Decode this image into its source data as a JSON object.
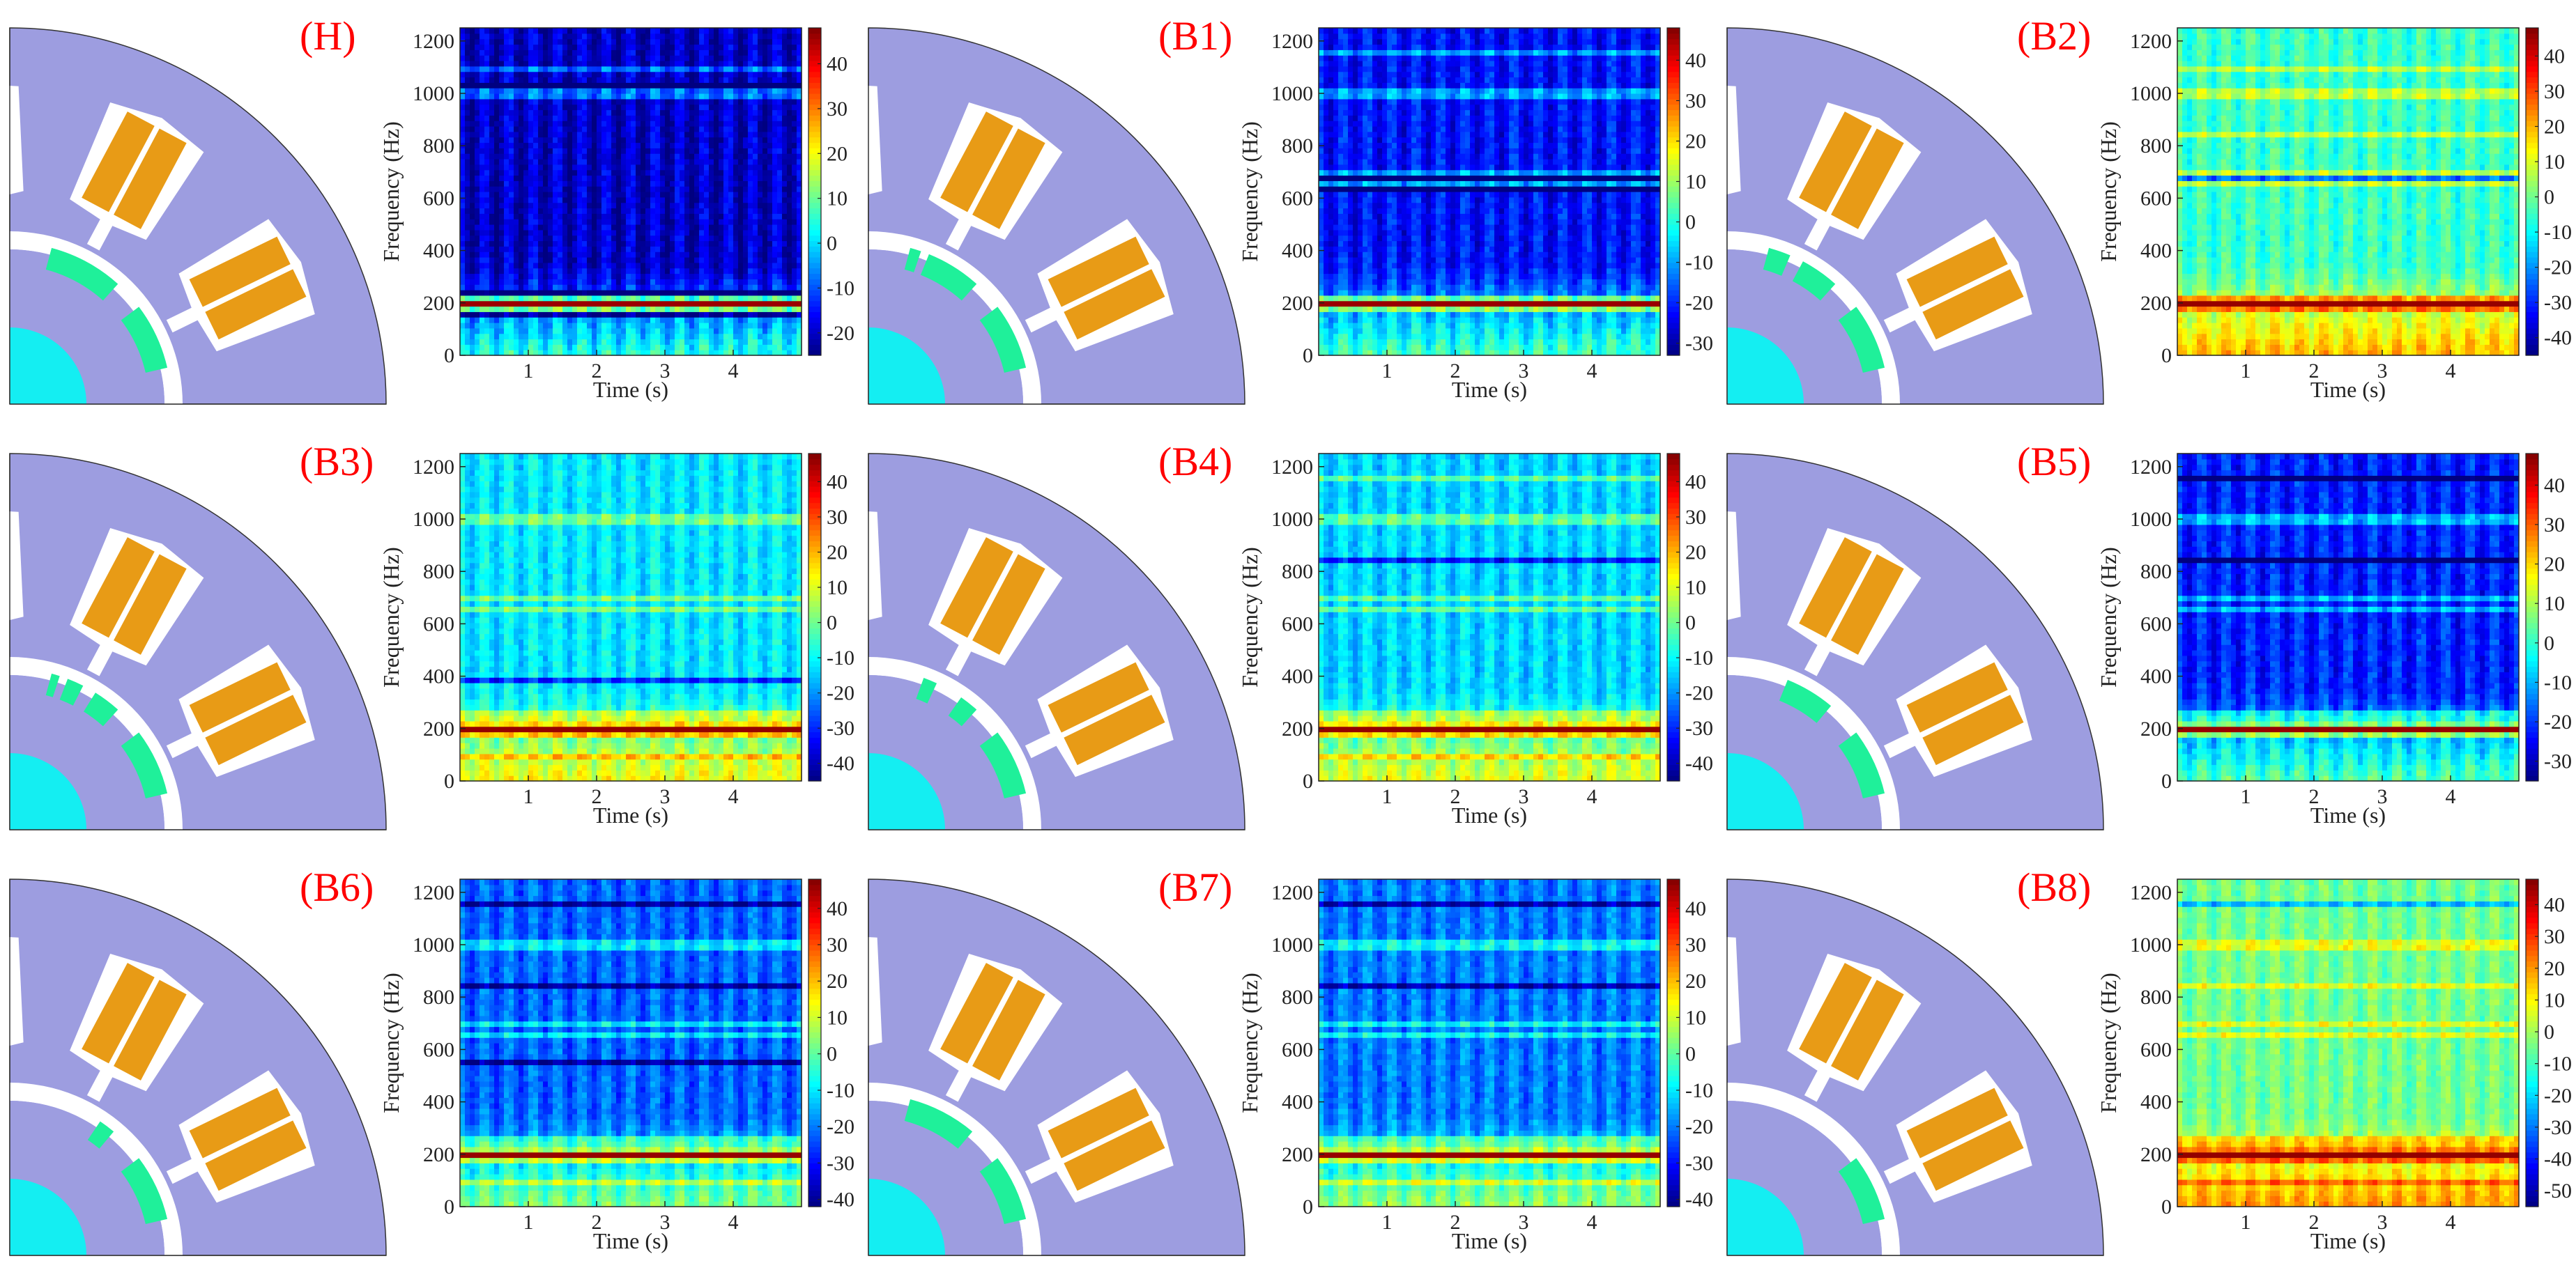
{
  "figure": {
    "description_labels_note": "3x3 grid: motor cross-section + spectrogram per case",
    "colors": {
      "stator": "#9d9de0",
      "winding": "#e89b16",
      "magnet": "#1ff09a",
      "shaft": "#14eef2",
      "label": "#ff0000"
    }
  },
  "chart_data": [
    {
      "type": "heatmap",
      "label": "(H)",
      "xlabel": "Time (s)",
      "ylabel": "Frequency (Hz)",
      "xticks": [
        "1",
        "2",
        "3",
        "4"
      ],
      "yticks": [
        "0",
        "200",
        "400",
        "600",
        "800",
        "1000",
        "1200"
      ],
      "xlim": [
        0,
        5
      ],
      "ylim": [
        0,
        1250
      ],
      "clim": [
        -25,
        48
      ],
      "cticks": [
        "40",
        "30",
        "20",
        "10",
        "0",
        "-10",
        "-20"
      ],
      "dominant_hz": [
        200
      ],
      "bright_lines_hz": [
        1000,
        1090
      ],
      "dark_lines_hz": [
        165,
        230,
        1040
      ],
      "vertical_stripes": 14,
      "high_freq_floor": -20
    },
    {
      "type": "heatmap",
      "label": "(B1)",
      "xlabel": "Time (s)",
      "ylabel": "Frequency (Hz)",
      "xticks": [
        "1",
        "2",
        "3",
        "4"
      ],
      "yticks": [
        "0",
        "200",
        "400",
        "600",
        "800",
        "1000",
        "1200"
      ],
      "xlim": [
        0,
        5
      ],
      "ylim": [
        0,
        1250
      ],
      "clim": [
        -33,
        48
      ],
      "cticks": [
        "40",
        "30",
        "20",
        "10",
        "0",
        "-10",
        "-20",
        "-30"
      ],
      "dominant_hz": [
        200
      ],
      "bright_lines_hz": [
        1000,
        700,
        650,
        1150
      ],
      "dark_lines_hz": [
        680,
        630
      ],
      "vertical_stripes": 14,
      "high_freq_floor": -22
    },
    {
      "type": "heatmap",
      "label": "(B2)",
      "xlabel": "Time (s)",
      "ylabel": "Frequency (Hz)",
      "xticks": [
        "1",
        "2",
        "3",
        "4"
      ],
      "yticks": [
        "0",
        "200",
        "400",
        "600",
        "800",
        "1000",
        "1200"
      ],
      "xlim": [
        0,
        5
      ],
      "ylim": [
        0,
        1250
      ],
      "clim": [
        -45,
        48
      ],
      "cticks": [
        "40",
        "30",
        "20",
        "10",
        "0",
        "-10",
        "-20",
        "-30",
        "-40"
      ],
      "dominant_hz": [
        200
      ],
      "bright_lines_hz": [
        1000,
        700,
        650,
        850,
        1100
      ],
      "dark_lines_hz": [
        680
      ],
      "vertical_stripes": 14,
      "high_freq_floor": -5
    },
    {
      "type": "heatmap",
      "label": "(B3)",
      "xlabel": "Time (s)",
      "ylabel": "Frequency (Hz)",
      "xticks": [
        "1",
        "2",
        "3",
        "4"
      ],
      "yticks": [
        "0",
        "200",
        "400",
        "600",
        "800",
        "1000",
        "1200"
      ],
      "xlim": [
        0,
        5
      ],
      "ylim": [
        0,
        1250
      ],
      "clim": [
        -45,
        48
      ],
      "cticks": [
        "40",
        "30",
        "20",
        "10",
        "0",
        "-10",
        "-20",
        "-30",
        "-40"
      ],
      "dominant_hz": [
        200
      ],
      "bright_lines_hz": [
        1000,
        700,
        650,
        250,
        100
      ],
      "dark_lines_hz": [
        380
      ],
      "vertical_stripes": 14,
      "high_freq_floor": -12
    },
    {
      "type": "heatmap",
      "label": "(B4)",
      "xlabel": "Time (s)",
      "ylabel": "Frequency (Hz)",
      "xticks": [
        "1",
        "2",
        "3",
        "4"
      ],
      "yticks": [
        "0",
        "200",
        "400",
        "600",
        "800",
        "1000",
        "1200"
      ],
      "xlim": [
        0,
        5
      ],
      "ylim": [
        0,
        1250
      ],
      "clim": [
        -45,
        48
      ],
      "cticks": [
        "40",
        "30",
        "20",
        "10",
        "0",
        "-10",
        "-20",
        "-30",
        "-40"
      ],
      "dominant_hz": [
        200
      ],
      "bright_lines_hz": [
        1000,
        700,
        650,
        250,
        100,
        1150
      ],
      "dark_lines_hz": [
        850
      ],
      "vertical_stripes": 14,
      "high_freq_floor": -14
    },
    {
      "type": "heatmap",
      "label": "(B5)",
      "xlabel": "Time (s)",
      "ylabel": "Frequency (Hz)",
      "xticks": [
        "1",
        "2",
        "3",
        "4"
      ],
      "yticks": [
        "0",
        "200",
        "400",
        "600",
        "800",
        "1000",
        "1200"
      ],
      "xlim": [
        0,
        5
      ],
      "ylim": [
        0,
        1250
      ],
      "clim": [
        -35,
        48
      ],
      "cticks": [
        "40",
        "30",
        "20",
        "10",
        "0",
        "-10",
        "-20",
        "-30"
      ],
      "dominant_hz": [
        200
      ],
      "bright_lines_hz": [
        1000,
        650,
        700,
        250
      ],
      "dark_lines_hz": [
        850,
        1150
      ],
      "vertical_stripes": 14,
      "high_freq_floor": -22
    },
    {
      "type": "heatmap",
      "label": "(B6)",
      "xlabel": "Time (s)",
      "ylabel": "Frequency (Hz)",
      "xticks": [
        "1",
        "2",
        "3",
        "4"
      ],
      "yticks": [
        "0",
        "200",
        "400",
        "600",
        "800",
        "1000",
        "1200"
      ],
      "xlim": [
        0,
        5
      ],
      "ylim": [
        0,
        1250
      ],
      "clim": [
        -42,
        48
      ],
      "cticks": [
        "40",
        "30",
        "20",
        "10",
        "0",
        "-10",
        "-20",
        "-30",
        "-40"
      ],
      "dominant_hz": [
        200
      ],
      "bright_lines_hz": [
        250,
        1000,
        650,
        700,
        100
      ],
      "dark_lines_hz": [
        850,
        1150,
        560
      ],
      "vertical_stripes": 14,
      "high_freq_floor": -22
    },
    {
      "type": "heatmap",
      "label": "(B7)",
      "xlabel": "Time (s)",
      "ylabel": "Frequency (Hz)",
      "xticks": [
        "1",
        "2",
        "3",
        "4"
      ],
      "yticks": [
        "0",
        "200",
        "400",
        "600",
        "800",
        "1000",
        "1200"
      ],
      "xlim": [
        0,
        5
      ],
      "ylim": [
        0,
        1250
      ],
      "clim": [
        -42,
        48
      ],
      "cticks": [
        "40",
        "30",
        "20",
        "10",
        "0",
        "-10",
        "-20",
        "-30",
        "-40"
      ],
      "dominant_hz": [
        200
      ],
      "bright_lines_hz": [
        250,
        1000,
        650,
        700,
        100
      ],
      "dark_lines_hz": [
        850,
        1150
      ],
      "vertical_stripes": 14,
      "high_freq_floor": -20
    },
    {
      "type": "heatmap",
      "label": "(B8)",
      "xlabel": "Time (s)",
      "ylabel": "Frequency (Hz)",
      "xticks": [
        "1",
        "2",
        "3",
        "4"
      ],
      "yticks": [
        "0",
        "200",
        "400",
        "600",
        "800",
        "1000",
        "1200"
      ],
      "xlim": [
        0,
        5
      ],
      "ylim": [
        0,
        1250
      ],
      "clim": [
        -55,
        48
      ],
      "cticks": [
        "40",
        "30",
        "20",
        "10",
        "0",
        "-10",
        "-20",
        "-30",
        "-40",
        "-50"
      ],
      "dominant_hz": [
        200
      ],
      "bright_lines_hz": [
        250,
        100,
        1000,
        650,
        700,
        850
      ],
      "dark_lines_hz": [
        1150
      ],
      "vertical_stripes": 14,
      "high_freq_floor": -5
    }
  ],
  "motors": [
    {
      "label": "(H)",
      "magnet_variant": "healthy"
    },
    {
      "label": "(B1)",
      "magnet_variant": "b1"
    },
    {
      "label": "(B2)",
      "magnet_variant": "b2"
    },
    {
      "label": "(B3)",
      "magnet_variant": "b3"
    },
    {
      "label": "(B4)",
      "magnet_variant": "b4"
    },
    {
      "label": "(B5)",
      "magnet_variant": "b5"
    },
    {
      "label": "(B6)",
      "magnet_variant": "b6"
    },
    {
      "label": "(B7)",
      "magnet_variant": "b7"
    },
    {
      "label": "(B8)",
      "magnet_variant": "b8"
    }
  ]
}
